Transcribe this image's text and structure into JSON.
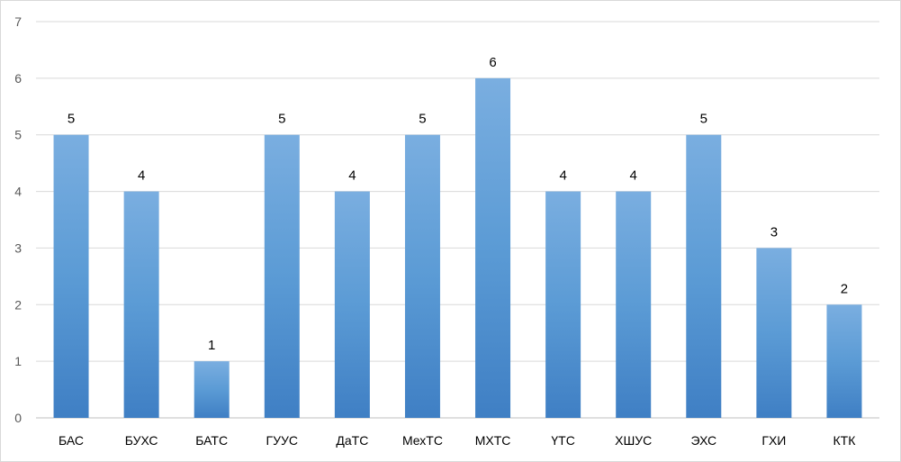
{
  "chart_data": {
    "type": "bar",
    "title": "",
    "xlabel": "",
    "ylabel": "",
    "categories": [
      "БАС",
      "БУХС",
      "БАТС",
      "ГУУС",
      "ДаТС",
      "МехТС",
      "МХТС",
      "ҮТС",
      "ХШУС",
      "ЭХС",
      "ГХИ",
      "КТК"
    ],
    "values": [
      5,
      4,
      1,
      5,
      4,
      5,
      6,
      4,
      4,
      5,
      3,
      2
    ],
    "ylim": [
      0,
      7
    ],
    "yticks": [
      0,
      1,
      2,
      3,
      4,
      5,
      6,
      7
    ],
    "grid": true,
    "legend": "none",
    "data_labels": true,
    "colors": {
      "bar_light": "#7aaee0",
      "bar_mid": "#5b9bd5",
      "bar_dark": "#3f7fc4",
      "grid": "#d9d9d9",
      "axis": "#bfbfbf"
    }
  }
}
